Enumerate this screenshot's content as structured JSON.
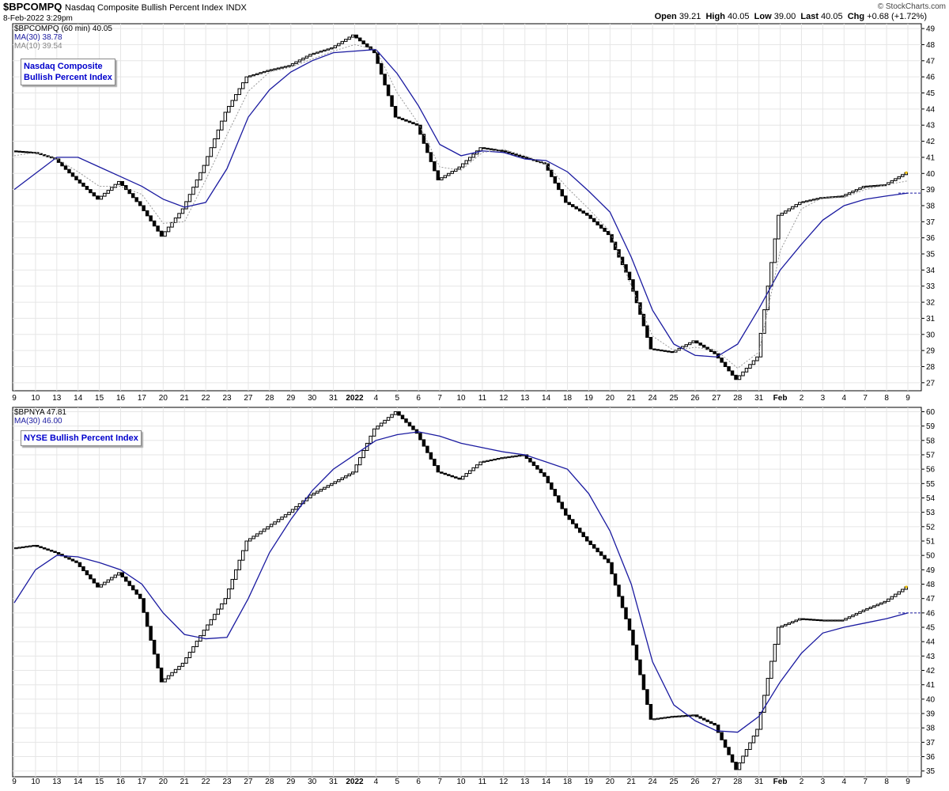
{
  "header": {
    "symbol": "$BPCOMPQ",
    "name": "Nasdaq Composite Bullish Percent Index",
    "exchange": "INDX",
    "date": "8-Feb-2022 3:29pm",
    "open_label": "Open",
    "open": "39.21",
    "high_label": "High",
    "high": "40.05",
    "low_label": "Low",
    "low": "39.00",
    "last_label": "Last",
    "last": "40.05",
    "chg_label": "Chg",
    "chg": "+0.68 (+1.72%)",
    "brand": "© StockCharts.com"
  },
  "colors": {
    "price": "#000000",
    "ma30": "#1a1aa0",
    "ma10": "#999999",
    "grid": "#e6e6e6"
  },
  "panels": [
    {
      "legend": [
        "$BPCOMPQ (60 min) 40.05",
        "MA(30) 38.78",
        "MA(10) 39.54"
      ],
      "title_box": [
        "Nasdaq Composite",
        "Bullish Percent Index"
      ],
      "y_ticks": [
        "27",
        "28",
        "29",
        "30",
        "31",
        "32",
        "33",
        "34",
        "35",
        "36",
        "37",
        "38",
        "39",
        "40",
        "41",
        "42",
        "43",
        "44",
        "45",
        "46",
        "47",
        "48",
        "49"
      ]
    },
    {
      "legend": [
        "$BPNYA 47.81",
        "MA(30) 46.00"
      ],
      "title_box": [
        "NYSE Bullish Percent Index"
      ],
      "y_ticks": [
        "35",
        "36",
        "37",
        "38",
        "39",
        "40",
        "41",
        "42",
        "43",
        "44",
        "45",
        "46",
        "47",
        "48",
        "49",
        "50",
        "51",
        "52",
        "53",
        "54",
        "55",
        "56",
        "57",
        "58",
        "59",
        "60"
      ]
    }
  ],
  "x_labels": [
    "9",
    "10",
    "13",
    "14",
    "15",
    "16",
    "17",
    "20",
    "21",
    "22",
    "23",
    "27",
    "28",
    "29",
    "30",
    "31",
    "2022",
    "4",
    "5",
    "6",
    "7",
    "10",
    "11",
    "12",
    "13",
    "14",
    "18",
    "19",
    "20",
    "21",
    "24",
    "25",
    "26",
    "27",
    "28",
    "31",
    "Feb",
    "2",
    "3",
    "4",
    "7",
    "8",
    "9"
  ],
  "chart_data": [
    {
      "type": "line",
      "title": "$BPCOMPQ Nasdaq Composite Bullish Percent Index",
      "interval": "60 min",
      "ylim": [
        26.5,
        49.3
      ],
      "x": [
        "9",
        "10",
        "13",
        "14",
        "15",
        "16",
        "17",
        "20",
        "21",
        "22",
        "23",
        "27",
        "28",
        "29",
        "30",
        "31",
        "2022",
        "4",
        "5",
        "6",
        "7",
        "10",
        "11",
        "12",
        "13",
        "14",
        "18",
        "19",
        "20",
        "21",
        "24",
        "25",
        "26",
        "27",
        "28",
        "31",
        "Feb",
        "2",
        "3",
        "4",
        "7",
        "8",
        "9"
      ],
      "series": [
        {
          "name": "$BPCOMPQ",
          "values": [
            41.4,
            41.3,
            40.9,
            39.6,
            38.4,
            39.5,
            38.0,
            36.1,
            37.8,
            40.5,
            43.8,
            46.0,
            46.4,
            46.7,
            47.4,
            47.8,
            48.6,
            47.5,
            43.5,
            43.0,
            39.6,
            40.4,
            41.6,
            41.4,
            41.0,
            40.6,
            38.2,
            37.4,
            36.2,
            33.4,
            29.1,
            28.9,
            29.6,
            28.8,
            27.2,
            28.6,
            37.4,
            38.2,
            38.5,
            38.6,
            39.2,
            39.3,
            40.05
          ]
        },
        {
          "name": "MA(30)",
          "values": [
            39.0,
            40.0,
            41.0,
            41.0,
            40.4,
            39.8,
            39.2,
            38.4,
            37.9,
            38.2,
            40.3,
            43.5,
            45.2,
            46.3,
            47.0,
            47.5,
            47.6,
            47.7,
            46.2,
            44.2,
            41.8,
            41.1,
            41.4,
            41.3,
            40.9,
            40.8,
            40.1,
            38.9,
            37.6,
            34.8,
            31.5,
            29.4,
            28.7,
            28.6,
            29.4,
            31.6,
            34.0,
            35.6,
            37.1,
            38.0,
            38.4,
            38.6,
            38.78
          ]
        },
        {
          "name": "MA(10)",
          "values": [
            41.1,
            41.3,
            40.9,
            40.1,
            39.2,
            39.2,
            38.7,
            36.9,
            37.0,
            39.6,
            42.4,
            45.1,
            46.3,
            46.6,
            47.1,
            47.6,
            48.0,
            47.7,
            45.0,
            43.1,
            40.4,
            40.2,
            41.3,
            41.5,
            41.1,
            40.6,
            39.1,
            37.8,
            36.4,
            33.0,
            29.9,
            29.0,
            29.2,
            29.0,
            27.9,
            28.9,
            35.2,
            37.8,
            38.5,
            38.5,
            39.0,
            39.3,
            39.54
          ]
        }
      ]
    },
    {
      "type": "line",
      "title": "$BPNYA NYSE Bullish Percent Index",
      "ylim": [
        34.6,
        60.3
      ],
      "x": [
        "9",
        "10",
        "13",
        "14",
        "15",
        "16",
        "17",
        "20",
        "21",
        "22",
        "23",
        "27",
        "28",
        "29",
        "30",
        "31",
        "2022",
        "4",
        "5",
        "6",
        "7",
        "10",
        "11",
        "12",
        "13",
        "14",
        "18",
        "19",
        "20",
        "21",
        "24",
        "25",
        "26",
        "27",
        "28",
        "31",
        "Feb",
        "2",
        "3",
        "4",
        "7",
        "8",
        "9"
      ],
      "series": [
        {
          "name": "$BPNYA",
          "values": [
            50.5,
            50.7,
            50.2,
            49.5,
            47.8,
            48.8,
            47.0,
            41.2,
            42.5,
            44.8,
            47.0,
            51.0,
            52.0,
            53.0,
            54.2,
            55.0,
            55.8,
            58.8,
            60.0,
            58.5,
            55.8,
            55.3,
            56.5,
            56.8,
            57.0,
            55.5,
            52.8,
            51.0,
            49.5,
            44.8,
            38.6,
            38.8,
            38.9,
            38.2,
            35.1,
            37.9,
            45.0,
            45.6,
            45.5,
            45.5,
            46.2,
            46.8,
            47.81
          ]
        },
        {
          "name": "MA(30)",
          "values": [
            46.7,
            49.0,
            50.0,
            49.9,
            49.5,
            49.0,
            48.0,
            46.0,
            44.5,
            44.2,
            44.3,
            47.0,
            50.2,
            52.5,
            54.5,
            56.0,
            57.0,
            58.0,
            58.4,
            58.6,
            58.3,
            57.8,
            57.5,
            57.2,
            57.0,
            56.5,
            56.0,
            54.3,
            51.7,
            48.0,
            42.6,
            39.6,
            38.5,
            37.8,
            37.7,
            38.8,
            41.2,
            43.2,
            44.6,
            45.0,
            45.3,
            45.6,
            46.0
          ]
        }
      ]
    }
  ]
}
